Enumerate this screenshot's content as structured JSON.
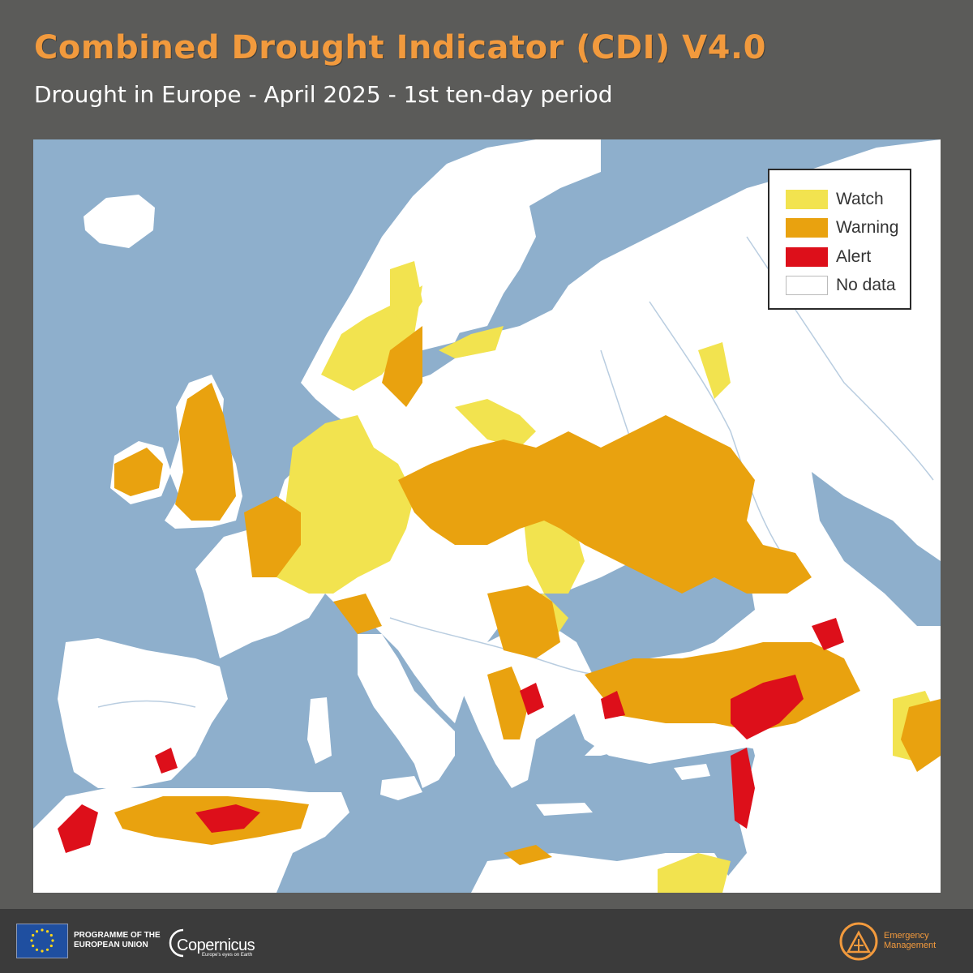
{
  "header": {
    "title": "Combined Drought Indicator (CDI) V4.0",
    "subtitle": "Drought in Europe - April 2025 - 1st ten-day period"
  },
  "map": {
    "region": "Europe, Mediterranean and Middle East",
    "colors": {
      "sea": "#8eafcc",
      "land": "#ffffff",
      "rivers": "#b9cde0",
      "watch": "#f2e34f",
      "warning": "#e9a20f",
      "alert": "#dd0f1a"
    }
  },
  "legend": {
    "items": [
      {
        "label": "Watch",
        "color": "#f2e34f"
      },
      {
        "label": "Warning",
        "color": "#e9a20f"
      },
      {
        "label": "Alert",
        "color": "#dd0f1a"
      },
      {
        "label": "No data",
        "color": "#ffffff"
      }
    ]
  },
  "footer": {
    "eu_line1": "PROGRAMME OF THE",
    "eu_line2": "EUROPEAN UNION",
    "copernicus": "Copernicus",
    "copernicus_tagline": "Europe's eyes on Earth",
    "ems_line1": "Emergency",
    "ems_line2": "Management"
  }
}
